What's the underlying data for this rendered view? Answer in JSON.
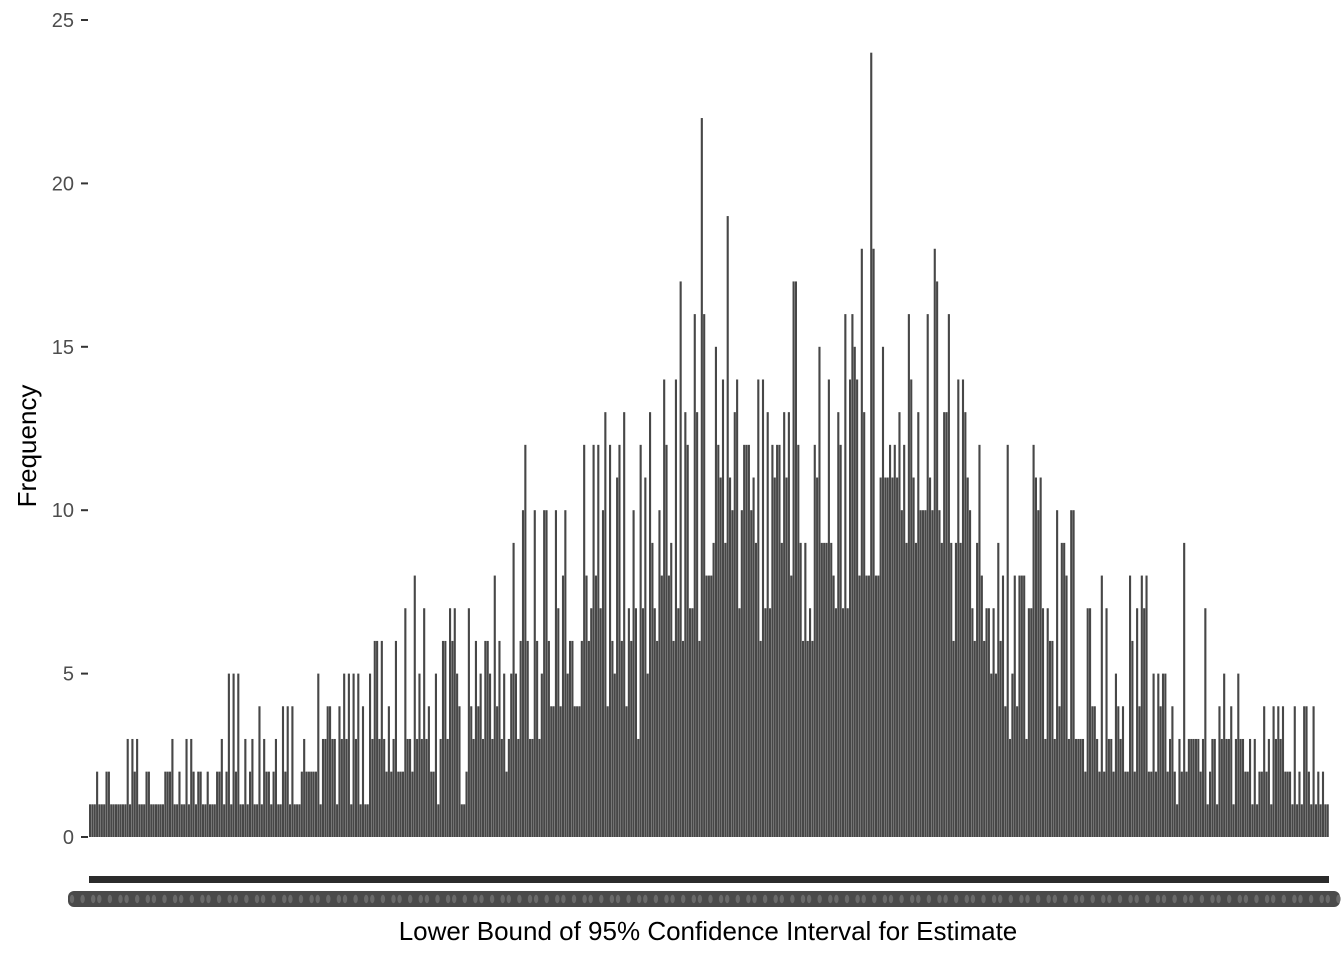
{
  "chart_data": {
    "type": "bar",
    "title": "",
    "xlabel": "Lower Bound of 95% Confidence Interval for Estimate",
    "ylabel": "Frequency",
    "ylim": [
      0,
      25
    ],
    "yticks": [
      0,
      5,
      10,
      15,
      20,
      25
    ],
    "grid": false,
    "legend": "none",
    "bar_color": "#474747",
    "x_axis_note": "x tick labels are overplotted and unreadable (one per distinct value)",
    "values": [
      1,
      1,
      1,
      2,
      1,
      1,
      1,
      2,
      2,
      1,
      1,
      1,
      1,
      1,
      1,
      1,
      3,
      1,
      3,
      2,
      3,
      1,
      1,
      1,
      2,
      2,
      1,
      1,
      1,
      1,
      1,
      1,
      2,
      2,
      2,
      3,
      1,
      1,
      2,
      1,
      1,
      3,
      1,
      3,
      2,
      1,
      2,
      2,
      1,
      1,
      2,
      1,
      1,
      1,
      2,
      2,
      3,
      1,
      2,
      5,
      1,
      5,
      2,
      5,
      1,
      1,
      3,
      1,
      2,
      3,
      1,
      1,
      4,
      1,
      3,
      2,
      2,
      1,
      2,
      3,
      1,
      1,
      4,
      2,
      4,
      1,
      4,
      1,
      1,
      1,
      2,
      3,
      2,
      2,
      2,
      2,
      2,
      5,
      1,
      3,
      3,
      4,
      4,
      3,
      3,
      1,
      4,
      3,
      5,
      3,
      5,
      1,
      5,
      3,
      5,
      1,
      4,
      1,
      1,
      5,
      3,
      6,
      6,
      3,
      6,
      3,
      2,
      4,
      2,
      3,
      6,
      2,
      2,
      2,
      7,
      3,
      3,
      2,
      8,
      3,
      5,
      3,
      7,
      3,
      4,
      2,
      2,
      5,
      1,
      3,
      6,
      6,
      3,
      7,
      6,
      7,
      5,
      4,
      1,
      1,
      2,
      7,
      4,
      3,
      6,
      4,
      5,
      3,
      6,
      6,
      5,
      3,
      8,
      4,
      6,
      3,
      5,
      2,
      3,
      5,
      9,
      5,
      3,
      6,
      10,
      12,
      6,
      3,
      3,
      10,
      6,
      3,
      5,
      10,
      10,
      6,
      4,
      4,
      10,
      7,
      4,
      8,
      10,
      5,
      6,
      6,
      4,
      4,
      4,
      6,
      12,
      8,
      6,
      7,
      12,
      8,
      12,
      7,
      10,
      13,
      4,
      12,
      6,
      5,
      11,
      12,
      6,
      13,
      4,
      7,
      6,
      10,
      7,
      3,
      12,
      7,
      11,
      5,
      13,
      9,
      7,
      6,
      10,
      8,
      14,
      12,
      8,
      9,
      6,
      14,
      7,
      17,
      6,
      13,
      12,
      7,
      7,
      16,
      13,
      6,
      22,
      16,
      8,
      8,
      8,
      9,
      15,
      12,
      11,
      14,
      9,
      19,
      11,
      10,
      13,
      14,
      7,
      10,
      12,
      12,
      12,
      10,
      11,
      9,
      14,
      6,
      14,
      7,
      13,
      7,
      12,
      11,
      12,
      12,
      9,
      13,
      11,
      13,
      8,
      17,
      17,
      12,
      9,
      6,
      9,
      6,
      7,
      6,
      12,
      11,
      15,
      9,
      9,
      9,
      14,
      9,
      8,
      7,
      13,
      12,
      7,
      16,
      7,
      14,
      16,
      15,
      14,
      8,
      18,
      13,
      8,
      8,
      24,
      18,
      8,
      8,
      11,
      15,
      11,
      11,
      12,
      11,
      12,
      11,
      13,
      10,
      12,
      9,
      16,
      14,
      11,
      9,
      13,
      10,
      10,
      10,
      16,
      11,
      10,
      18,
      17,
      10,
      9,
      13,
      13,
      16,
      9,
      6,
      9,
      14,
      9,
      14,
      13,
      11,
      10,
      7,
      6,
      9,
      12,
      8,
      6,
      7,
      7,
      5,
      7,
      5,
      9,
      6,
      8,
      4,
      12,
      3,
      5,
      8,
      4,
      8,
      8,
      8,
      3,
      7,
      7,
      12,
      11,
      10,
      11,
      7,
      3,
      7,
      6,
      6,
      3,
      10,
      4,
      9,
      9,
      8,
      3,
      10,
      10,
      3,
      3,
      3,
      3,
      2,
      7,
      7,
      4,
      4,
      3,
      2,
      8,
      2,
      7,
      3,
      3,
      2,
      5,
      4,
      3,
      4,
      2,
      2,
      8,
      6,
      2,
      7,
      4,
      8,
      7,
      8,
      2,
      2,
      5,
      2,
      5,
      4,
      5,
      5,
      2,
      3,
      4,
      2,
      1,
      3,
      2,
      9,
      2,
      3,
      3,
      3,
      3,
      3,
      2,
      3,
      7,
      1,
      2,
      3,
      3,
      1,
      4,
      3,
      5,
      3,
      3,
      4,
      1,
      3,
      5,
      3,
      3,
      2,
      2,
      3,
      1,
      3,
      1,
      2,
      2,
      4,
      2,
      3,
      1,
      4,
      3,
      4,
      3,
      4,
      2,
      2,
      2,
      1,
      4,
      1,
      2,
      1,
      4,
      4,
      2,
      1,
      4,
      1,
      2,
      1,
      2,
      1,
      1
    ]
  }
}
